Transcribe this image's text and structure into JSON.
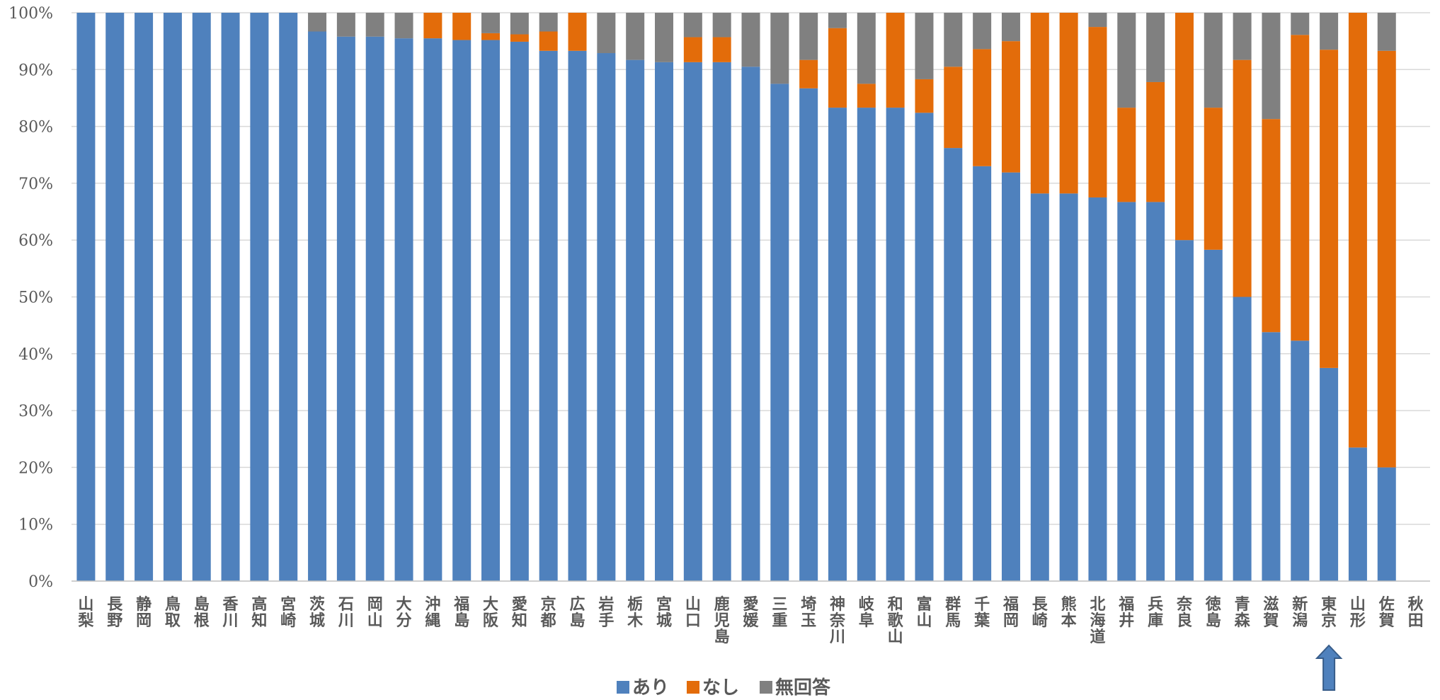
{
  "chart_data": {
    "type": "bar",
    "stacked": true,
    "title": "",
    "xlabel": "",
    "ylabel": "",
    "ylim": [
      0,
      100
    ],
    "y_tick_labels": [
      "0%",
      "10%",
      "20%",
      "30%",
      "40%",
      "50%",
      "60%",
      "70%",
      "80%",
      "90%",
      "100%"
    ],
    "grid": true,
    "legend_position": "bottom",
    "categories": [
      "山梨",
      "長野",
      "静岡",
      "鳥取",
      "島根",
      "香川",
      "高知",
      "宮崎",
      "茨城",
      "石川",
      "岡山",
      "大分",
      "沖縄",
      "福島",
      "大阪",
      "愛知",
      "京都",
      "広島",
      "岩手",
      "栃木",
      "宮城",
      "山口",
      "鹿児島",
      "愛媛",
      "三重",
      "埼玉",
      "神奈川",
      "岐阜",
      "和歌山",
      "富山",
      "群馬",
      "千葉",
      "福岡",
      "長崎",
      "熊本",
      "北海道",
      "福井",
      "兵庫",
      "奈良",
      "徳島",
      "青森",
      "滋賀",
      "新潟",
      "東京",
      "山形",
      "佐賀",
      "秋田"
    ],
    "series": [
      {
        "name": "あり",
        "color": "#4f81bd",
        "values": [
          100,
          100,
          100,
          100,
          100,
          100,
          100,
          100,
          96.7,
          95.8,
          95.8,
          95.5,
          95.5,
          95.2,
          95.2,
          94.9,
          93.3,
          93.3,
          92.9,
          91.7,
          91.3,
          91.3,
          91.3,
          90.5,
          87.5,
          86.7,
          83.3,
          83.3,
          83.3,
          82.4,
          76.2,
          73.0,
          71.9,
          68.2,
          68.2,
          67.5,
          66.7,
          66.7,
          60.0,
          58.3,
          50.0,
          43.8,
          42.3,
          37.5,
          23.5,
          20.0,
          0
        ]
      },
      {
        "name": "なし",
        "color": "#e36c0a",
        "values": [
          0,
          0,
          0,
          0,
          0,
          0,
          0,
          0,
          0,
          0,
          0,
          0,
          4.5,
          4.8,
          1.2,
          1.3,
          3.4,
          6.7,
          0,
          0,
          0,
          4.4,
          4.4,
          0,
          0,
          5.0,
          14.0,
          4.2,
          16.7,
          5.9,
          14.3,
          20.6,
          23.1,
          31.8,
          31.8,
          30.0,
          16.6,
          21.1,
          40.0,
          25.0,
          41.7,
          37.5,
          53.8,
          56.0,
          76.5,
          73.3,
          0
        ]
      },
      {
        "name": "無回答",
        "color": "#808080",
        "values": [
          0,
          0,
          0,
          0,
          0,
          0,
          0,
          0,
          3.3,
          4.2,
          4.2,
          4.5,
          0,
          0,
          3.6,
          3.8,
          3.3,
          0,
          7.1,
          8.3,
          8.7,
          4.3,
          4.3,
          9.5,
          12.5,
          8.3,
          2.7,
          12.5,
          0,
          11.7,
          9.5,
          6.4,
          5.0,
          0,
          0,
          2.5,
          16.7,
          12.2,
          0,
          16.7,
          8.3,
          18.7,
          3.9,
          6.5,
          0,
          6.7,
          0
        ]
      }
    ],
    "annotations": [
      {
        "type": "arrow",
        "points_to": "東京"
      }
    ]
  }
}
